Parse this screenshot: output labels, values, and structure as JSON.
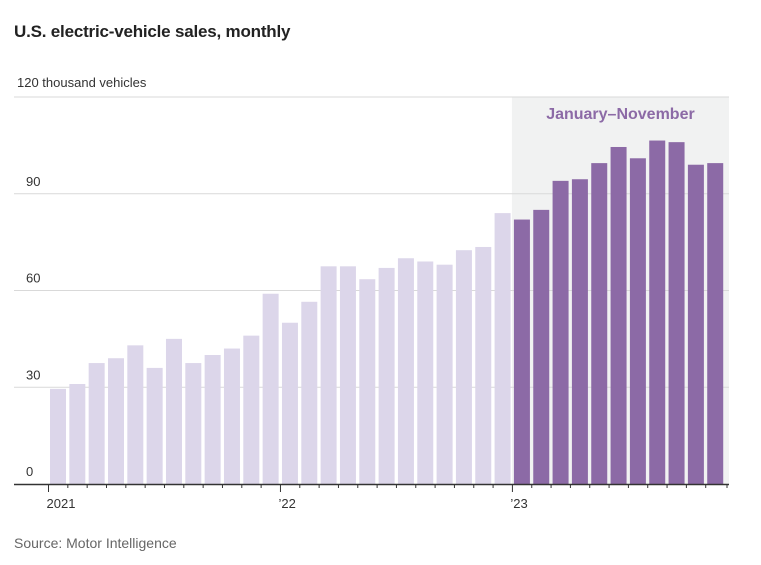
{
  "title": "U.S. electric-vehicle sales, monthly",
  "source": "Source: Motor Intelligence",
  "colors": {
    "past": "#dcd6ea",
    "current": "#8c6aa6",
    "highlight_bg": "#f1f2f2",
    "annotation": "#8c6aa6",
    "grid": "#d9d9d9",
    "axis": "#333333"
  },
  "chart_data": {
    "type": "bar",
    "title": "U.S. electric-vehicle sales, monthly",
    "ylabel": "120 thousand vehicles",
    "unit_label": "120 thousand vehicles",
    "ylim": [
      0,
      120
    ],
    "yticks": [
      0,
      30,
      60,
      90
    ],
    "x_tick_labels": [
      {
        "label": "2021",
        "index": 0
      },
      {
        "label": "’22",
        "index": 12
      },
      {
        "label": "’23",
        "index": 24
      }
    ],
    "annotation": "January–November",
    "highlight_start_index": 24,
    "series": [
      {
        "name": "2021–2022",
        "values": [
          29.5,
          31,
          37.5,
          39,
          43,
          36,
          45,
          37.5,
          40,
          42,
          46,
          59,
          50,
          56.5,
          67.5,
          67.5,
          63.5,
          67,
          70,
          69,
          68,
          72.5,
          73.5,
          84
        ]
      },
      {
        "name": "2023 (January–November)",
        "values": [
          82,
          85,
          94,
          94.5,
          99.5,
          104.5,
          101,
          106.5,
          106,
          99,
          99.5
        ]
      }
    ]
  }
}
